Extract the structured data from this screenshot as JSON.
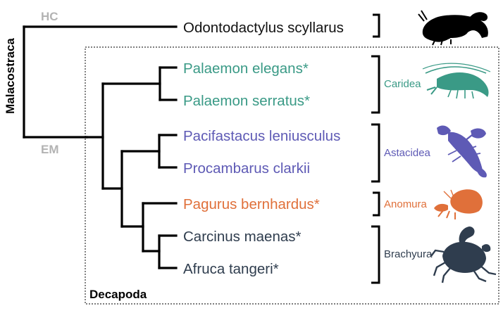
{
  "colors": {
    "tree": "#000000",
    "marker": "#b3b3b3",
    "caridea": "#3a9a86",
    "astacidea": "#5e5ab5",
    "anomura": "#e0703a",
    "brachyura": "#2f3d4e",
    "outgroup": "#111111"
  },
  "markers": {
    "hc": "HC",
    "em": "EM"
  },
  "clades": {
    "root": "Malacostraca",
    "box": "Decapoda"
  },
  "taxa": {
    "odontodactylus": "Odontodactylus scyllarus",
    "palaemon_elegans": "Palaemon elegans*",
    "palaemon_serratus": "Palaemon serratus*",
    "pacifastacus": "Pacifastacus leniusculus",
    "procambarus": "Procambarus clarkii",
    "pagurus": "Pagurus bernhardus*",
    "carcinus": "Carcinus maenas*",
    "afruca": "Afruca tangeri*"
  },
  "groups": {
    "caridea": "Caridea",
    "astacidea": "Astacidea",
    "anomura": "Anomura",
    "brachyura": "Brachyura"
  },
  "icons": [
    "mantis-shrimp-icon",
    "shrimp-icon",
    "crayfish-icon",
    "hermit-crab-icon",
    "crab-icon"
  ]
}
